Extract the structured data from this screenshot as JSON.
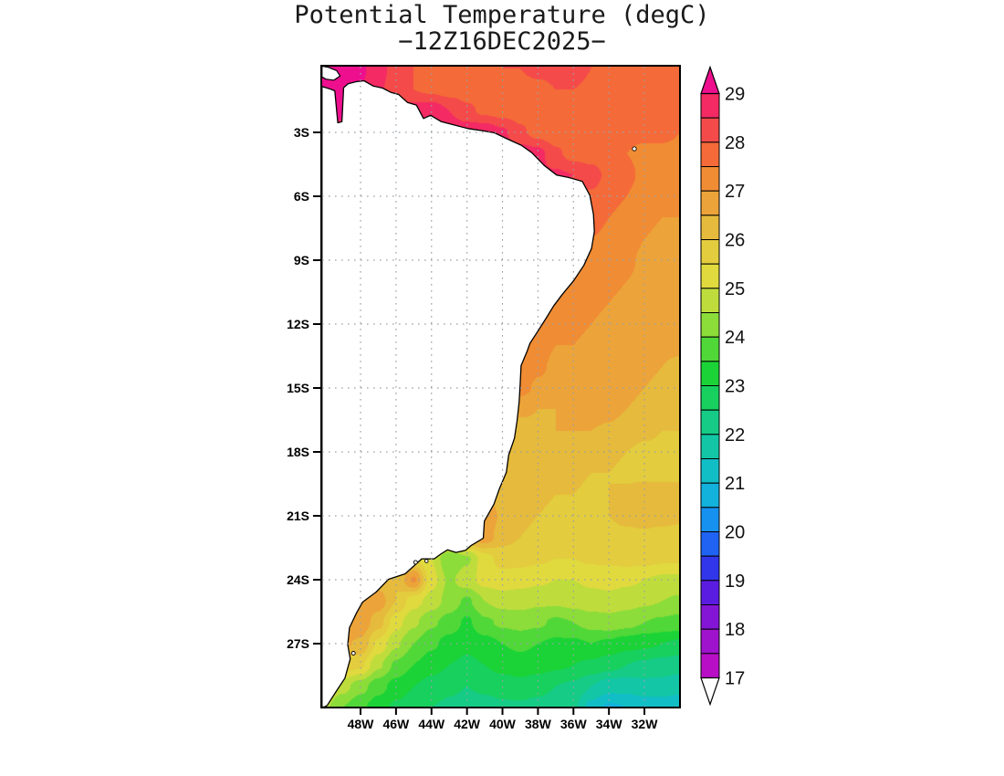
{
  "title": {
    "line1": "Potential Temperature (degC)",
    "line2": "−12Z16DEC2025−"
  },
  "axes": {
    "lat_ticks": [
      {
        "label": "3S",
        "deg": 3
      },
      {
        "label": "6S",
        "deg": 6
      },
      {
        "label": "9S",
        "deg": 9
      },
      {
        "label": "12S",
        "deg": 12
      },
      {
        "label": "15S",
        "deg": 15
      },
      {
        "label": "18S",
        "deg": 18
      },
      {
        "label": "21S",
        "deg": 21
      },
      {
        "label": "24S",
        "deg": 24
      },
      {
        "label": "27S",
        "deg": 27
      }
    ],
    "lon_ticks": [
      {
        "label": "48W",
        "deg": 48
      },
      {
        "label": "46W",
        "deg": 46
      },
      {
        "label": "44W",
        "deg": 44
      },
      {
        "label": "42W",
        "deg": 42
      },
      {
        "label": "40W",
        "deg": 40
      },
      {
        "label": "38W",
        "deg": 38
      },
      {
        "label": "36W",
        "deg": 36
      },
      {
        "label": "34W",
        "deg": 34
      },
      {
        "label": "32W",
        "deg": 32
      }
    ]
  },
  "colorbar": {
    "labels": [
      "29",
      "28",
      "27",
      "26",
      "25",
      "24",
      "23",
      "22",
      "21",
      "20",
      "19",
      "18",
      "17"
    ]
  },
  "chart_data": {
    "type": "heatmap",
    "title": "Potential Temperature (degC)",
    "subtitle": "−12Z16DEC2025−",
    "units": "degC",
    "lon_range": [
      -50.2,
      -30.0
    ],
    "lat_range": [
      0.13,
      -30.1
    ],
    "levels_min": 17,
    "levels_step": 0.5,
    "levels_max": 29,
    "palette": [
      "#b80fc6",
      "#a013cd",
      "#8415d6",
      "#5b1ce2",
      "#3136ea",
      "#2063f2",
      "#1691f0",
      "#13b2dc",
      "#12bec6",
      "#13c6a6",
      "#15cb86",
      "#17d05e",
      "#1bd336",
      "#50d838",
      "#8cdc3a",
      "#bedd3c",
      "#e0da3e",
      "#e3cc3e",
      "#e6ba3c",
      "#eca43a",
      "#f08c34",
      "#f46a38",
      "#f54a4a",
      "#f32a64"
    ],
    "over_color": "#ee0f8e",
    "under_color": "#ffffff",
    "grid": {
      "lon_start": -50,
      "lon_step": 1,
      "lon_count": 21,
      "lat_start": 0,
      "lat_step": -1,
      "lat_count": 31
    },
    "values": [
      [
        29.6,
        29.4,
        29.1,
        28.7,
        28.3,
        28.0,
        27.9,
        27.9,
        27.9,
        27.9,
        28.0,
        28.0,
        28.1,
        28.1,
        28.2,
        28.0,
        27.9,
        27.8,
        27.8,
        27.8,
        27.8
      ],
      [
        29.5,
        29.3,
        29.0,
        28.6,
        28.2,
        28.0,
        27.9,
        27.8,
        27.8,
        27.8,
        27.9,
        27.9,
        27.9,
        28.0,
        28.0,
        27.9,
        27.8,
        27.8,
        27.7,
        27.7,
        27.7
      ],
      [
        29.3,
        29.1,
        28.9,
        28.7,
        28.7,
        28.8,
        28.9,
        28.5,
        28.1,
        27.9,
        27.8,
        27.8,
        27.8,
        27.8,
        27.8,
        27.8,
        27.7,
        27.7,
        27.7,
        27.6,
        27.6
      ],
      [
        28.8,
        28.8,
        28.8,
        28.8,
        28.8,
        28.8,
        28.9,
        28.9,
        28.9,
        28.9,
        28.6,
        28.1,
        27.8,
        27.7,
        27.7,
        27.7,
        27.7,
        27.6,
        27.6,
        27.6,
        27.5
      ],
      [
        28.2,
        28.2,
        28.2,
        28.2,
        28.2,
        28.3,
        28.5,
        28.6,
        28.7,
        28.8,
        28.8,
        28.8,
        28.7,
        28.1,
        27.8,
        27.7,
        27.6,
        27.5,
        27.4,
        27.4,
        27.4
      ],
      [
        28.0,
        28.0,
        28.0,
        28.0,
        28.0,
        28.0,
        28.1,
        28.2,
        28.3,
        28.4,
        28.5,
        28.6,
        28.6,
        28.6,
        28.5,
        28.3,
        27.8,
        27.6,
        27.4,
        27.3,
        27.3
      ],
      [
        27.9,
        27.9,
        27.9,
        27.9,
        27.9,
        27.9,
        27.9,
        27.9,
        27.9,
        27.9,
        28.0,
        28.0,
        28.0,
        28.0,
        28.0,
        27.9,
        27.7,
        27.5,
        27.3,
        27.2,
        27.2
      ],
      [
        27.8,
        27.8,
        27.8,
        27.8,
        27.8,
        27.8,
        27.8,
        27.8,
        27.8,
        27.8,
        27.8,
        27.8,
        27.8,
        27.8,
        27.8,
        27.7,
        27.5,
        27.3,
        27.1,
        27.0,
        27.0
      ],
      [
        27.7,
        27.7,
        27.7,
        27.7,
        27.7,
        27.7,
        27.7,
        27.7,
        27.7,
        27.7,
        27.7,
        27.7,
        27.7,
        27.7,
        27.6,
        27.5,
        27.4,
        27.2,
        27.0,
        26.9,
        26.9
      ],
      [
        27.6,
        27.6,
        27.6,
        27.6,
        27.6,
        27.6,
        27.6,
        27.6,
        27.6,
        27.6,
        27.6,
        27.6,
        27.6,
        27.5,
        27.4,
        27.3,
        27.2,
        27.1,
        26.9,
        26.9,
        26.8
      ],
      [
        27.6,
        27.6,
        27.6,
        27.6,
        27.6,
        27.6,
        27.6,
        27.6,
        27.6,
        27.6,
        27.6,
        27.5,
        27.5,
        27.4,
        27.3,
        27.2,
        27.1,
        27.0,
        26.9,
        26.8,
        26.8
      ],
      [
        27.5,
        27.5,
        27.5,
        27.5,
        27.5,
        27.5,
        27.5,
        27.5,
        27.5,
        27.5,
        27.5,
        27.4,
        27.4,
        27.3,
        27.2,
        27.1,
        27.0,
        26.9,
        26.8,
        26.8,
        26.7
      ],
      [
        27.6,
        27.6,
        27.6,
        27.6,
        27.6,
        27.6,
        27.6,
        27.6,
        27.6,
        27.7,
        27.6,
        27.4,
        27.2,
        27.1,
        27.1,
        27.0,
        26.9,
        26.8,
        26.8,
        26.7,
        26.7
      ],
      [
        27.8,
        27.8,
        27.8,
        27.8,
        27.8,
        27.8,
        27.8,
        27.8,
        27.8,
        28.0,
        28.1,
        27.6,
        27.2,
        27.0,
        27.0,
        26.9,
        26.9,
        26.8,
        26.7,
        26.6,
        26.6
      ],
      [
        27.9,
        27.9,
        27.9,
        27.9,
        27.9,
        27.9,
        27.9,
        27.9,
        27.9,
        28.0,
        28.2,
        27.4,
        27.1,
        26.9,
        26.9,
        26.9,
        26.8,
        26.7,
        26.6,
        26.5,
        26.4
      ],
      [
        27.6,
        27.6,
        27.6,
        27.6,
        27.6,
        27.6,
        27.6,
        27.6,
        27.6,
        27.8,
        27.9,
        27.2,
        26.9,
        26.8,
        26.9,
        27.0,
        26.9,
        26.7,
        26.5,
        26.4,
        26.3
      ],
      [
        27.0,
        27.0,
        27.0,
        27.0,
        27.0,
        27.0,
        27.0,
        27.0,
        27.0,
        27.0,
        26.9,
        26.6,
        26.5,
        26.5,
        26.6,
        26.8,
        26.7,
        26.5,
        26.3,
        26.2,
        26.2
      ],
      [
        26.4,
        26.4,
        26.4,
        26.4,
        26.4,
        26.4,
        26.4,
        26.4,
        26.4,
        26.2,
        26.1,
        26.3,
        26.4,
        26.5,
        26.5,
        26.5,
        26.4,
        26.2,
        26.1,
        26.0,
        26.0
      ],
      [
        26.2,
        26.2,
        26.2,
        26.2,
        26.2,
        26.2,
        26.2,
        26.2,
        26.2,
        26.0,
        25.9,
        26.2,
        26.4,
        26.4,
        26.3,
        26.2,
        26.1,
        26.0,
        25.9,
        25.9,
        25.8
      ],
      [
        26.1,
        26.1,
        26.1,
        26.1,
        26.1,
        26.1,
        26.1,
        26.1,
        26.1,
        26.0,
        26.0,
        26.2,
        26.3,
        26.2,
        26.1,
        26.0,
        26.0,
        25.9,
        25.9,
        25.8,
        25.8
      ],
      [
        26.3,
        26.3,
        26.3,
        26.3,
        26.3,
        26.3,
        26.3,
        26.3,
        26.3,
        26.5,
        26.2,
        26.1,
        26.1,
        26.0,
        26.0,
        25.9,
        26.0,
        26.1,
        26.2,
        26.3,
        26.3
      ],
      [
        26.5,
        26.5,
        26.5,
        26.5,
        26.5,
        26.5,
        26.5,
        26.6,
        26.8,
        26.9,
        26.4,
        26.1,
        26.0,
        25.9,
        25.9,
        25.9,
        26.0,
        26.1,
        26.2,
        26.2,
        26.1
      ],
      [
        26.2,
        26.2,
        26.2,
        26.2,
        26.2,
        26.2,
        26.3,
        26.5,
        26.7,
        26.8,
        26.2,
        26.0,
        25.9,
        25.8,
        25.8,
        25.8,
        25.9,
        25.9,
        25.9,
        25.8,
        25.8
      ],
      [
        25.8,
        25.8,
        25.8,
        25.8,
        25.6,
        25.5,
        25.0,
        24.0,
        24.4,
        25.3,
        25.7,
        25.7,
        25.6,
        25.5,
        25.5,
        25.6,
        25.6,
        25.7,
        25.7,
        25.6,
        25.6
      ],
      [
        26.3,
        26.3,
        26.3,
        26.2,
        26.0,
        27.1,
        25.2,
        24.4,
        24.8,
        25.2,
        25.3,
        25.2,
        25.1,
        25.0,
        25.0,
        25.1,
        25.2,
        25.1,
        25.0,
        24.9,
        24.9
      ],
      [
        27.0,
        27.0,
        27.0,
        26.8,
        26.0,
        25.2,
        24.8,
        24.3,
        23.9,
        24.5,
        24.7,
        24.7,
        24.6,
        24.6,
        24.7,
        24.8,
        24.8,
        24.7,
        24.6,
        24.5,
        24.4
      ],
      [
        27.1,
        27.1,
        26.9,
        26.2,
        25.2,
        24.6,
        24.1,
        23.8,
        23.4,
        23.9,
        24.1,
        24.2,
        24.1,
        23.9,
        24.0,
        24.2,
        24.3,
        24.2,
        24.0,
        23.9,
        23.8
      ],
      [
        26.8,
        26.6,
        26.4,
        25.4,
        24.6,
        24.0,
        23.6,
        23.3,
        23.1,
        23.3,
        23.5,
        23.6,
        23.5,
        23.4,
        23.4,
        23.5,
        23.4,
        23.2,
        23.1,
        23.0,
        22.9
      ],
      [
        26.0,
        25.8,
        25.6,
        24.6,
        23.9,
        23.5,
        23.2,
        23.0,
        22.9,
        23.0,
        23.2,
        23.3,
        23.2,
        23.1,
        23.0,
        22.9,
        22.7,
        22.5,
        22.4,
        22.3,
        22.2
      ],
      [
        25.1,
        24.7,
        24.2,
        23.7,
        23.3,
        23.0,
        22.8,
        22.6,
        22.5,
        22.6,
        22.7,
        22.8,
        22.7,
        22.5,
        22.4,
        22.0,
        21.7,
        21.7,
        21.8,
        21.8,
        21.7
      ],
      [
        24.6,
        24.0,
        23.6,
        23.2,
        22.9,
        22.7,
        22.5,
        22.4,
        22.3,
        22.3,
        22.4,
        22.4,
        22.3,
        22.2,
        22.1,
        21.3,
        20.9,
        21.0,
        21.2,
        21.2,
        21.1
      ]
    ]
  },
  "map": {
    "colors": {
      "land": "#ffffff",
      "coast": "#000000",
      "grid_dots": "#9aa0a8",
      "frame": "#000000"
    },
    "coastline_main": [
      [
        -50.25,
        -0.85
      ],
      [
        -49.75,
        -0.95
      ],
      [
        -49.45,
        -1.05
      ],
      [
        -49.28,
        -2.55
      ],
      [
        -49.05,
        -2.5
      ],
      [
        -48.95,
        -0.9
      ],
      [
        -48.7,
        -0.72
      ],
      [
        -48.25,
        -0.62
      ],
      [
        -47.8,
        -0.58
      ],
      [
        -47.3,
        -0.82
      ],
      [
        -46.75,
        -0.92
      ],
      [
        -46.3,
        -1.12
      ],
      [
        -45.85,
        -1.22
      ],
      [
        -45.35,
        -1.6
      ],
      [
        -44.85,
        -1.72
      ],
      [
        -44.45,
        -2.35
      ],
      [
        -44.05,
        -2.2
      ],
      [
        -43.45,
        -2.5
      ],
      [
        -42.75,
        -2.65
      ],
      [
        -41.95,
        -2.82
      ],
      [
        -41.15,
        -2.92
      ],
      [
        -40.45,
        -3.02
      ],
      [
        -39.75,
        -3.3
      ],
      [
        -38.95,
        -3.6
      ],
      [
        -38.35,
        -3.95
      ],
      [
        -37.65,
        -4.55
      ],
      [
        -36.95,
        -5.0
      ],
      [
        -36.25,
        -5.12
      ],
      [
        -35.5,
        -5.3
      ],
      [
        -35.08,
        -5.95
      ],
      [
        -34.87,
        -6.85
      ],
      [
        -34.82,
        -7.65
      ],
      [
        -34.98,
        -8.45
      ],
      [
        -35.42,
        -9.25
      ],
      [
        -35.98,
        -9.95
      ],
      [
        -36.62,
        -10.6
      ],
      [
        -37.12,
        -11.15
      ],
      [
        -37.52,
        -11.7
      ],
      [
        -38.02,
        -12.35
      ],
      [
        -38.45,
        -12.9
      ],
      [
        -38.62,
        -13.3
      ],
      [
        -38.95,
        -13.95
      ],
      [
        -39.0,
        -14.75
      ],
      [
        -39.06,
        -15.65
      ],
      [
        -39.18,
        -16.55
      ],
      [
        -39.32,
        -17.35
      ],
      [
        -39.65,
        -18.15
      ],
      [
        -39.78,
        -18.95
      ],
      [
        -40.18,
        -19.75
      ],
      [
        -40.48,
        -20.45
      ],
      [
        -41.02,
        -21.25
      ],
      [
        -41.08,
        -22.05
      ],
      [
        -41.78,
        -22.4
      ],
      [
        -42.08,
        -22.62
      ],
      [
        -42.62,
        -22.72
      ],
      [
        -43.1,
        -22.6
      ],
      [
        -43.45,
        -22.78
      ],
      [
        -43.85,
        -23.02
      ],
      [
        -44.55,
        -23.02
      ],
      [
        -44.95,
        -23.32
      ],
      [
        -45.48,
        -23.72
      ],
      [
        -46.42,
        -23.98
      ],
      [
        -47.12,
        -24.58
      ],
      [
        -47.88,
        -25.05
      ],
      [
        -48.22,
        -25.55
      ],
      [
        -48.62,
        -26.25
      ],
      [
        -48.72,
        -27.05
      ],
      [
        -48.58,
        -27.72
      ],
      [
        -48.88,
        -28.62
      ],
      [
        -49.38,
        -29.25
      ],
      [
        -49.88,
        -29.9
      ],
      [
        -50.05,
        -30.2
      ],
      [
        -50.3,
        -30.2
      ]
    ],
    "island_marajo": [
      [
        -50.3,
        0.15
      ],
      [
        -49.8,
        0.05
      ],
      [
        -49.35,
        -0.1
      ],
      [
        -49.15,
        -0.35
      ],
      [
        -49.5,
        -0.55
      ],
      [
        -49.95,
        -0.5
      ],
      [
        -50.3,
        -0.4
      ]
    ],
    "islets": [
      {
        "lon": -32.57,
        "lat": -3.77,
        "r": 2.2
      },
      {
        "lon": -44.9,
        "lat": -23.18,
        "r": 2.0
      },
      {
        "lon": -44.28,
        "lat": -23.12,
        "r": 1.8
      },
      {
        "lon": -48.4,
        "lat": -27.45,
        "r": 2.0
      }
    ]
  }
}
